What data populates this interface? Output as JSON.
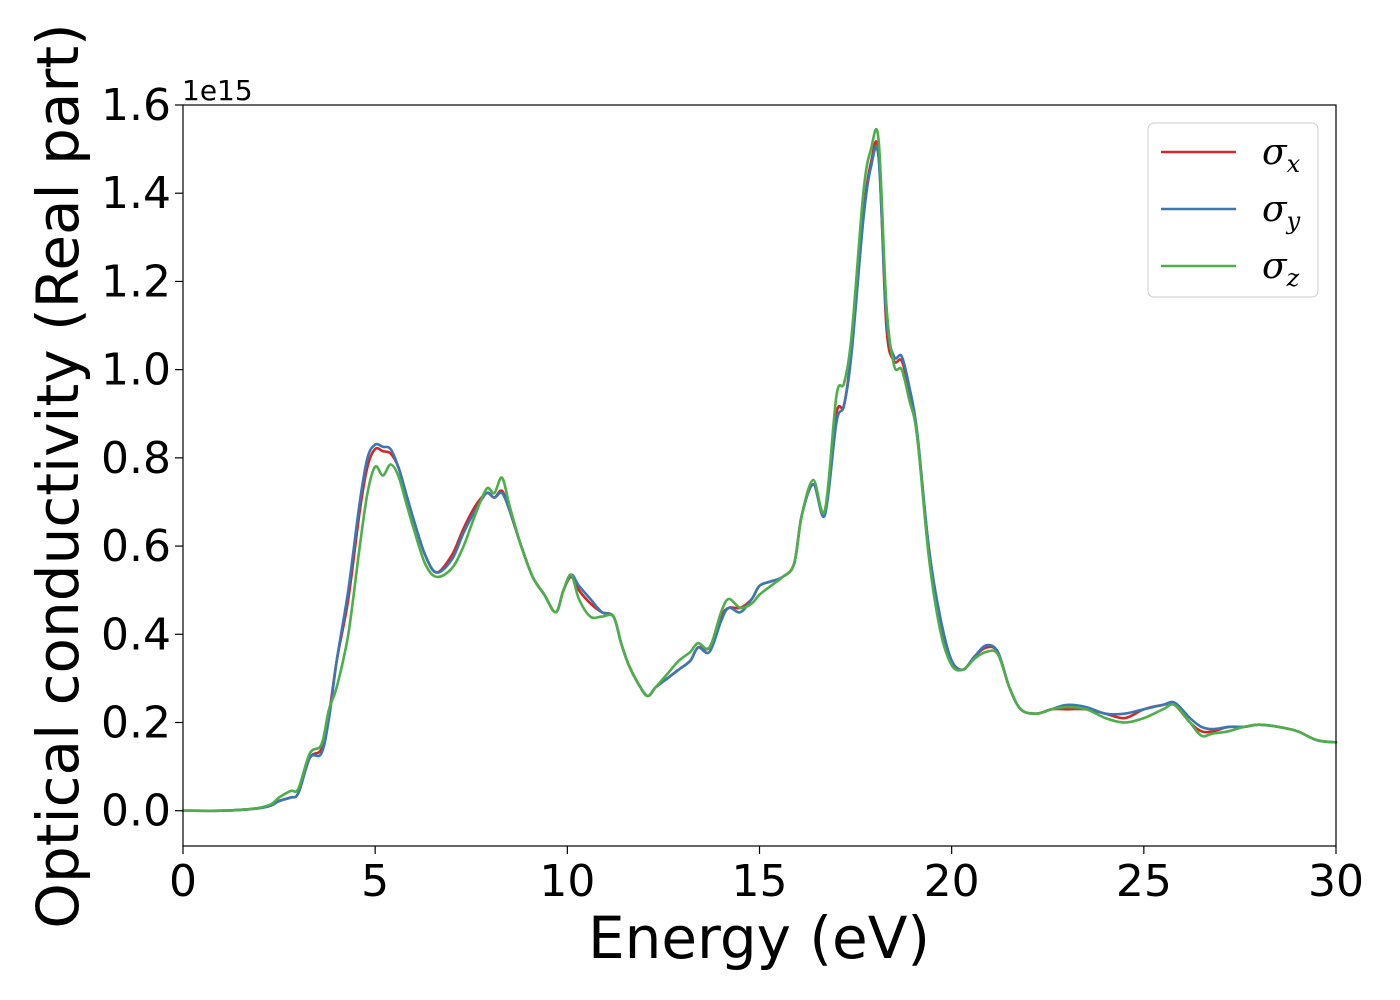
{
  "chart_data": {
    "type": "line",
    "xlabel": "Energy (eV)",
    "ylabel": "Optical conductivity (Real part)",
    "y_offset_label": "1e15",
    "xlim": [
      0,
      30
    ],
    "ylim": [
      -0.08,
      1.6
    ],
    "xticks": [
      0,
      5,
      10,
      15,
      20,
      25,
      30
    ],
    "xtick_labels": [
      "0",
      "5",
      "10",
      "15",
      "20",
      "25",
      "30"
    ],
    "yticks": [
      0.0,
      0.2,
      0.4,
      0.6,
      0.8,
      1.0,
      1.2,
      1.4,
      1.6
    ],
    "ytick_labels": [
      "0.0",
      "0.2",
      "0.4",
      "0.6",
      "0.8",
      "1.0",
      "1.2",
      "1.4",
      "1.6"
    ],
    "grid": false,
    "legend_position": "top-right",
    "series": [
      {
        "name": "σx",
        "legend_base": "σ",
        "legend_sub": "x",
        "color": "#d62728",
        "x": [
          0,
          1,
          1.5,
          2,
          2.3,
          2.5,
          2.8,
          3.0,
          3.3,
          3.6,
          3.8,
          4.0,
          4.3,
          4.6,
          4.8,
          5.0,
          5.2,
          5.4,
          5.6,
          5.8,
          6.0,
          6.3,
          6.6,
          7.0,
          7.3,
          7.6,
          7.9,
          8.1,
          8.3,
          8.5,
          8.8,
          9.1,
          9.4,
          9.7,
          9.9,
          10.1,
          10.3,
          10.6,
          10.9,
          11.2,
          11.4,
          11.6,
          11.9,
          12.1,
          12.3,
          12.6,
          12.9,
          13.2,
          13.4,
          13.7,
          14.0,
          14.2,
          14.5,
          14.8,
          15.0,
          15.3,
          15.6,
          15.9,
          16.1,
          16.4,
          16.7,
          17.0,
          17.2,
          17.4,
          17.7,
          17.9,
          18.1,
          18.3,
          18.5,
          18.7,
          18.9,
          19.1,
          19.4,
          19.7,
          20.0,
          20.3,
          20.6,
          20.9,
          21.2,
          21.5,
          21.8,
          22.2,
          22.6,
          23.0,
          23.5,
          24.0,
          24.5,
          25.0,
          25.5,
          25.8,
          26.2,
          26.5,
          26.8,
          27.2,
          27.6,
          28.0,
          28.5,
          29.0,
          29.5,
          30.0
        ],
        "values": [
          0,
          0,
          0.002,
          0.006,
          0.012,
          0.022,
          0.03,
          0.04,
          0.12,
          0.14,
          0.22,
          0.34,
          0.48,
          0.68,
          0.78,
          0.82,
          0.815,
          0.81,
          0.78,
          0.72,
          0.66,
          0.58,
          0.54,
          0.58,
          0.64,
          0.69,
          0.72,
          0.71,
          0.725,
          0.68,
          0.6,
          0.53,
          0.49,
          0.45,
          0.5,
          0.53,
          0.5,
          0.47,
          0.45,
          0.44,
          0.38,
          0.33,
          0.28,
          0.26,
          0.28,
          0.3,
          0.32,
          0.34,
          0.37,
          0.37,
          0.44,
          0.46,
          0.46,
          0.48,
          0.51,
          0.52,
          0.53,
          0.56,
          0.67,
          0.74,
          0.68,
          0.9,
          0.92,
          1.05,
          1.35,
          1.47,
          1.49,
          1.1,
          1.02,
          1.02,
          0.95,
          0.85,
          0.6,
          0.43,
          0.34,
          0.32,
          0.35,
          0.37,
          0.36,
          0.28,
          0.23,
          0.22,
          0.23,
          0.23,
          0.23,
          0.22,
          0.21,
          0.23,
          0.24,
          0.24,
          0.2,
          0.18,
          0.18,
          0.19,
          0.19,
          0.195,
          0.19,
          0.18,
          0.16,
          0.155
        ]
      },
      {
        "name": "σy",
        "legend_base": "σ",
        "legend_sub": "y",
        "color": "#3a78b5",
        "x": [
          0,
          1,
          1.5,
          2,
          2.3,
          2.5,
          2.8,
          3.0,
          3.3,
          3.6,
          3.8,
          4.0,
          4.3,
          4.6,
          4.8,
          5.0,
          5.2,
          5.4,
          5.6,
          5.8,
          6.0,
          6.3,
          6.6,
          7.0,
          7.3,
          7.6,
          7.9,
          8.1,
          8.3,
          8.5,
          8.8,
          9.1,
          9.4,
          9.7,
          9.9,
          10.1,
          10.3,
          10.6,
          10.9,
          11.2,
          11.4,
          11.6,
          11.9,
          12.1,
          12.3,
          12.6,
          12.9,
          13.2,
          13.4,
          13.7,
          14.0,
          14.2,
          14.5,
          14.8,
          15.0,
          15.3,
          15.6,
          15.9,
          16.1,
          16.4,
          16.7,
          17.0,
          17.2,
          17.4,
          17.7,
          17.9,
          18.1,
          18.3,
          18.5,
          18.7,
          18.9,
          19.1,
          19.4,
          19.7,
          20.0,
          20.3,
          20.6,
          20.9,
          21.2,
          21.5,
          21.8,
          22.2,
          22.6,
          23.0,
          23.5,
          24.0,
          24.5,
          25.0,
          25.5,
          25.8,
          26.2,
          26.5,
          26.8,
          27.2,
          27.6,
          28.0,
          28.5,
          29.0,
          29.5,
          30.0
        ],
        "values": [
          0,
          0,
          0.002,
          0.006,
          0.012,
          0.022,
          0.03,
          0.04,
          0.12,
          0.13,
          0.21,
          0.34,
          0.5,
          0.7,
          0.8,
          0.83,
          0.825,
          0.82,
          0.78,
          0.72,
          0.66,
          0.58,
          0.54,
          0.57,
          0.63,
          0.68,
          0.72,
          0.71,
          0.72,
          0.68,
          0.6,
          0.53,
          0.49,
          0.45,
          0.5,
          0.535,
          0.51,
          0.48,
          0.45,
          0.44,
          0.38,
          0.33,
          0.28,
          0.26,
          0.28,
          0.3,
          0.32,
          0.34,
          0.37,
          0.36,
          0.43,
          0.46,
          0.45,
          0.48,
          0.51,
          0.52,
          0.53,
          0.56,
          0.67,
          0.74,
          0.67,
          0.88,
          0.92,
          1.04,
          1.34,
          1.46,
          1.48,
          1.12,
          1.03,
          1.03,
          0.96,
          0.86,
          0.6,
          0.44,
          0.34,
          0.32,
          0.35,
          0.375,
          0.36,
          0.28,
          0.23,
          0.22,
          0.23,
          0.24,
          0.235,
          0.22,
          0.22,
          0.23,
          0.24,
          0.245,
          0.21,
          0.19,
          0.185,
          0.19,
          0.19,
          0.195,
          0.19,
          0.18,
          0.16,
          0.155
        ]
      },
      {
        "name": "σz",
        "legend_base": "σ",
        "legend_sub": "z",
        "color": "#4daf4a",
        "x": [
          0,
          1,
          1.5,
          2,
          2.3,
          2.5,
          2.8,
          3.0,
          3.3,
          3.6,
          3.8,
          4.0,
          4.3,
          4.6,
          4.8,
          5.0,
          5.2,
          5.4,
          5.6,
          5.8,
          6.0,
          6.3,
          6.6,
          7.0,
          7.3,
          7.6,
          7.9,
          8.1,
          8.3,
          8.5,
          8.8,
          9.1,
          9.4,
          9.7,
          9.9,
          10.1,
          10.3,
          10.6,
          10.9,
          11.2,
          11.4,
          11.6,
          11.9,
          12.1,
          12.3,
          12.6,
          12.9,
          13.2,
          13.4,
          13.7,
          14.0,
          14.2,
          14.5,
          14.8,
          15.0,
          15.3,
          15.6,
          15.9,
          16.1,
          16.4,
          16.7,
          17.0,
          17.2,
          17.4,
          17.7,
          17.9,
          18.1,
          18.3,
          18.5,
          18.7,
          18.9,
          19.1,
          19.4,
          19.7,
          20.0,
          20.3,
          20.6,
          20.9,
          21.2,
          21.5,
          21.8,
          22.2,
          22.6,
          23.0,
          23.5,
          24.0,
          24.5,
          25.0,
          25.5,
          25.8,
          26.2,
          26.5,
          26.8,
          27.2,
          27.6,
          28.0,
          28.5,
          29.0,
          29.5,
          30.0
        ],
        "values": [
          0,
          0,
          0.002,
          0.007,
          0.015,
          0.03,
          0.045,
          0.05,
          0.13,
          0.15,
          0.23,
          0.28,
          0.4,
          0.6,
          0.72,
          0.78,
          0.76,
          0.785,
          0.76,
          0.7,
          0.64,
          0.56,
          0.53,
          0.55,
          0.6,
          0.67,
          0.73,
          0.72,
          0.755,
          0.69,
          0.6,
          0.53,
          0.49,
          0.45,
          0.5,
          0.535,
          0.48,
          0.44,
          0.44,
          0.44,
          0.38,
          0.33,
          0.28,
          0.26,
          0.28,
          0.31,
          0.34,
          0.36,
          0.38,
          0.37,
          0.45,
          0.48,
          0.46,
          0.47,
          0.49,
          0.51,
          0.53,
          0.56,
          0.67,
          0.75,
          0.68,
          0.94,
          0.97,
          1.08,
          1.4,
          1.5,
          1.52,
          1.15,
          1.01,
          1.0,
          0.93,
          0.85,
          0.58,
          0.41,
          0.33,
          0.32,
          0.345,
          0.36,
          0.355,
          0.28,
          0.23,
          0.22,
          0.23,
          0.235,
          0.23,
          0.21,
          0.2,
          0.21,
          0.23,
          0.24,
          0.2,
          0.17,
          0.175,
          0.18,
          0.19,
          0.195,
          0.19,
          0.18,
          0.16,
          0.155
        ]
      }
    ]
  }
}
